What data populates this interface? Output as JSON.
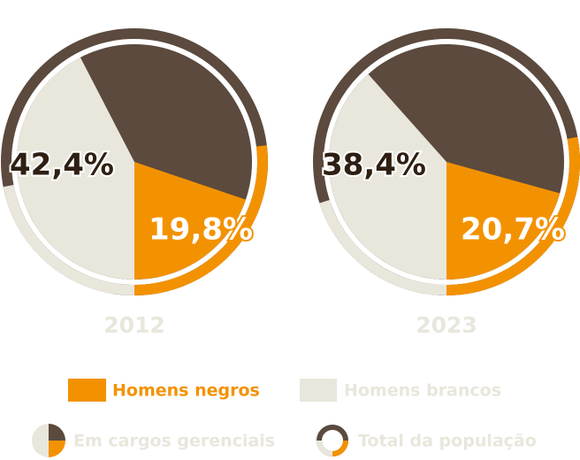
{
  "chart_data": {
    "type": "pie",
    "categories": [
      "Homens negros",
      "Homens brancos"
    ],
    "colors": [
      "#f39200",
      "#e9e6dc"
    ],
    "other_color": "#5b4a3d",
    "inner_label": "Em cargos gerenciais",
    "outer_label": "Total da população",
    "charts": [
      {
        "title": "2012",
        "values": [
          19.8,
          42.4
        ],
        "value_labels": [
          "19,8%",
          "42,4%"
        ],
        "ring_values": [
          27,
          22
        ]
      },
      {
        "title": "2023",
        "values": [
          20.7,
          38.4
        ],
        "value_labels": [
          "20,7%",
          "38,4%"
        ],
        "ring_values": [
          28,
          20
        ]
      }
    ]
  }
}
